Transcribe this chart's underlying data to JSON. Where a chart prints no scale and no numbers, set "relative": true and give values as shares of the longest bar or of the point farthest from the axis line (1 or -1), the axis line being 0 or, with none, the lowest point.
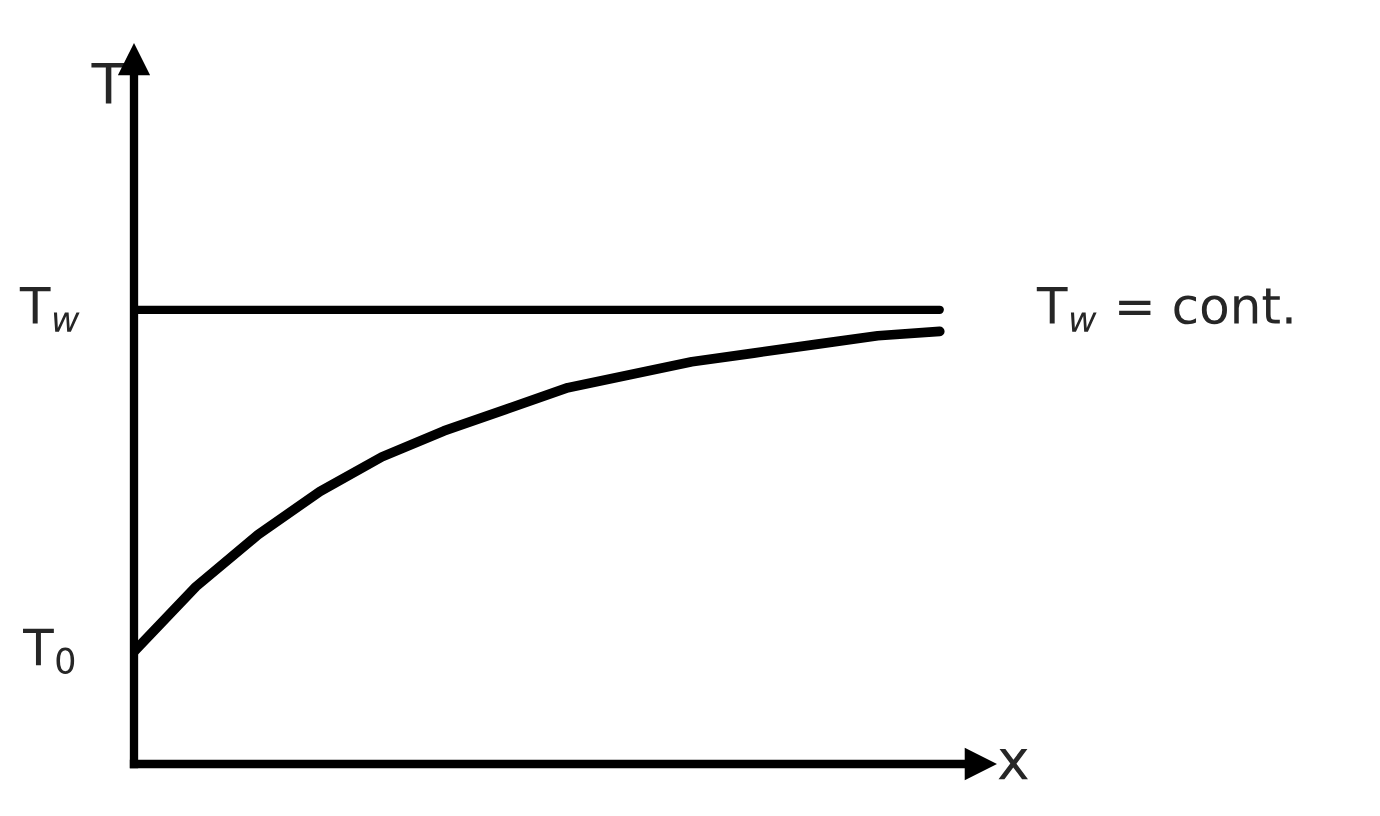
{
  "chart_data": {
    "type": "line",
    "relative": true,
    "xlabel": "x",
    "ylabel": "T",
    "categories": [
      null,
      null,
      null,
      null,
      null,
      null,
      null,
      null,
      null,
      null,
      null,
      null,
      null,
      null
    ],
    "series": [
      {
        "color": "#000000",
        "values": [
          0.26,
          0.41,
          0.53,
          0.63,
          0.71,
          0.77,
          0.82,
          0.87,
          0.9,
          0.93,
          0.95,
          0.97,
          0.99,
          1.0
        ]
      }
    ],
    "ref_lines": [
      {
        "axis": "y",
        "value": 1.05,
        "label": "T$_{w}$",
        "color": "#000000"
      }
    ],
    "annotations": [
      "T$_{w}$ = cont.",
      "T$_{0}$"
    ]
  }
}
